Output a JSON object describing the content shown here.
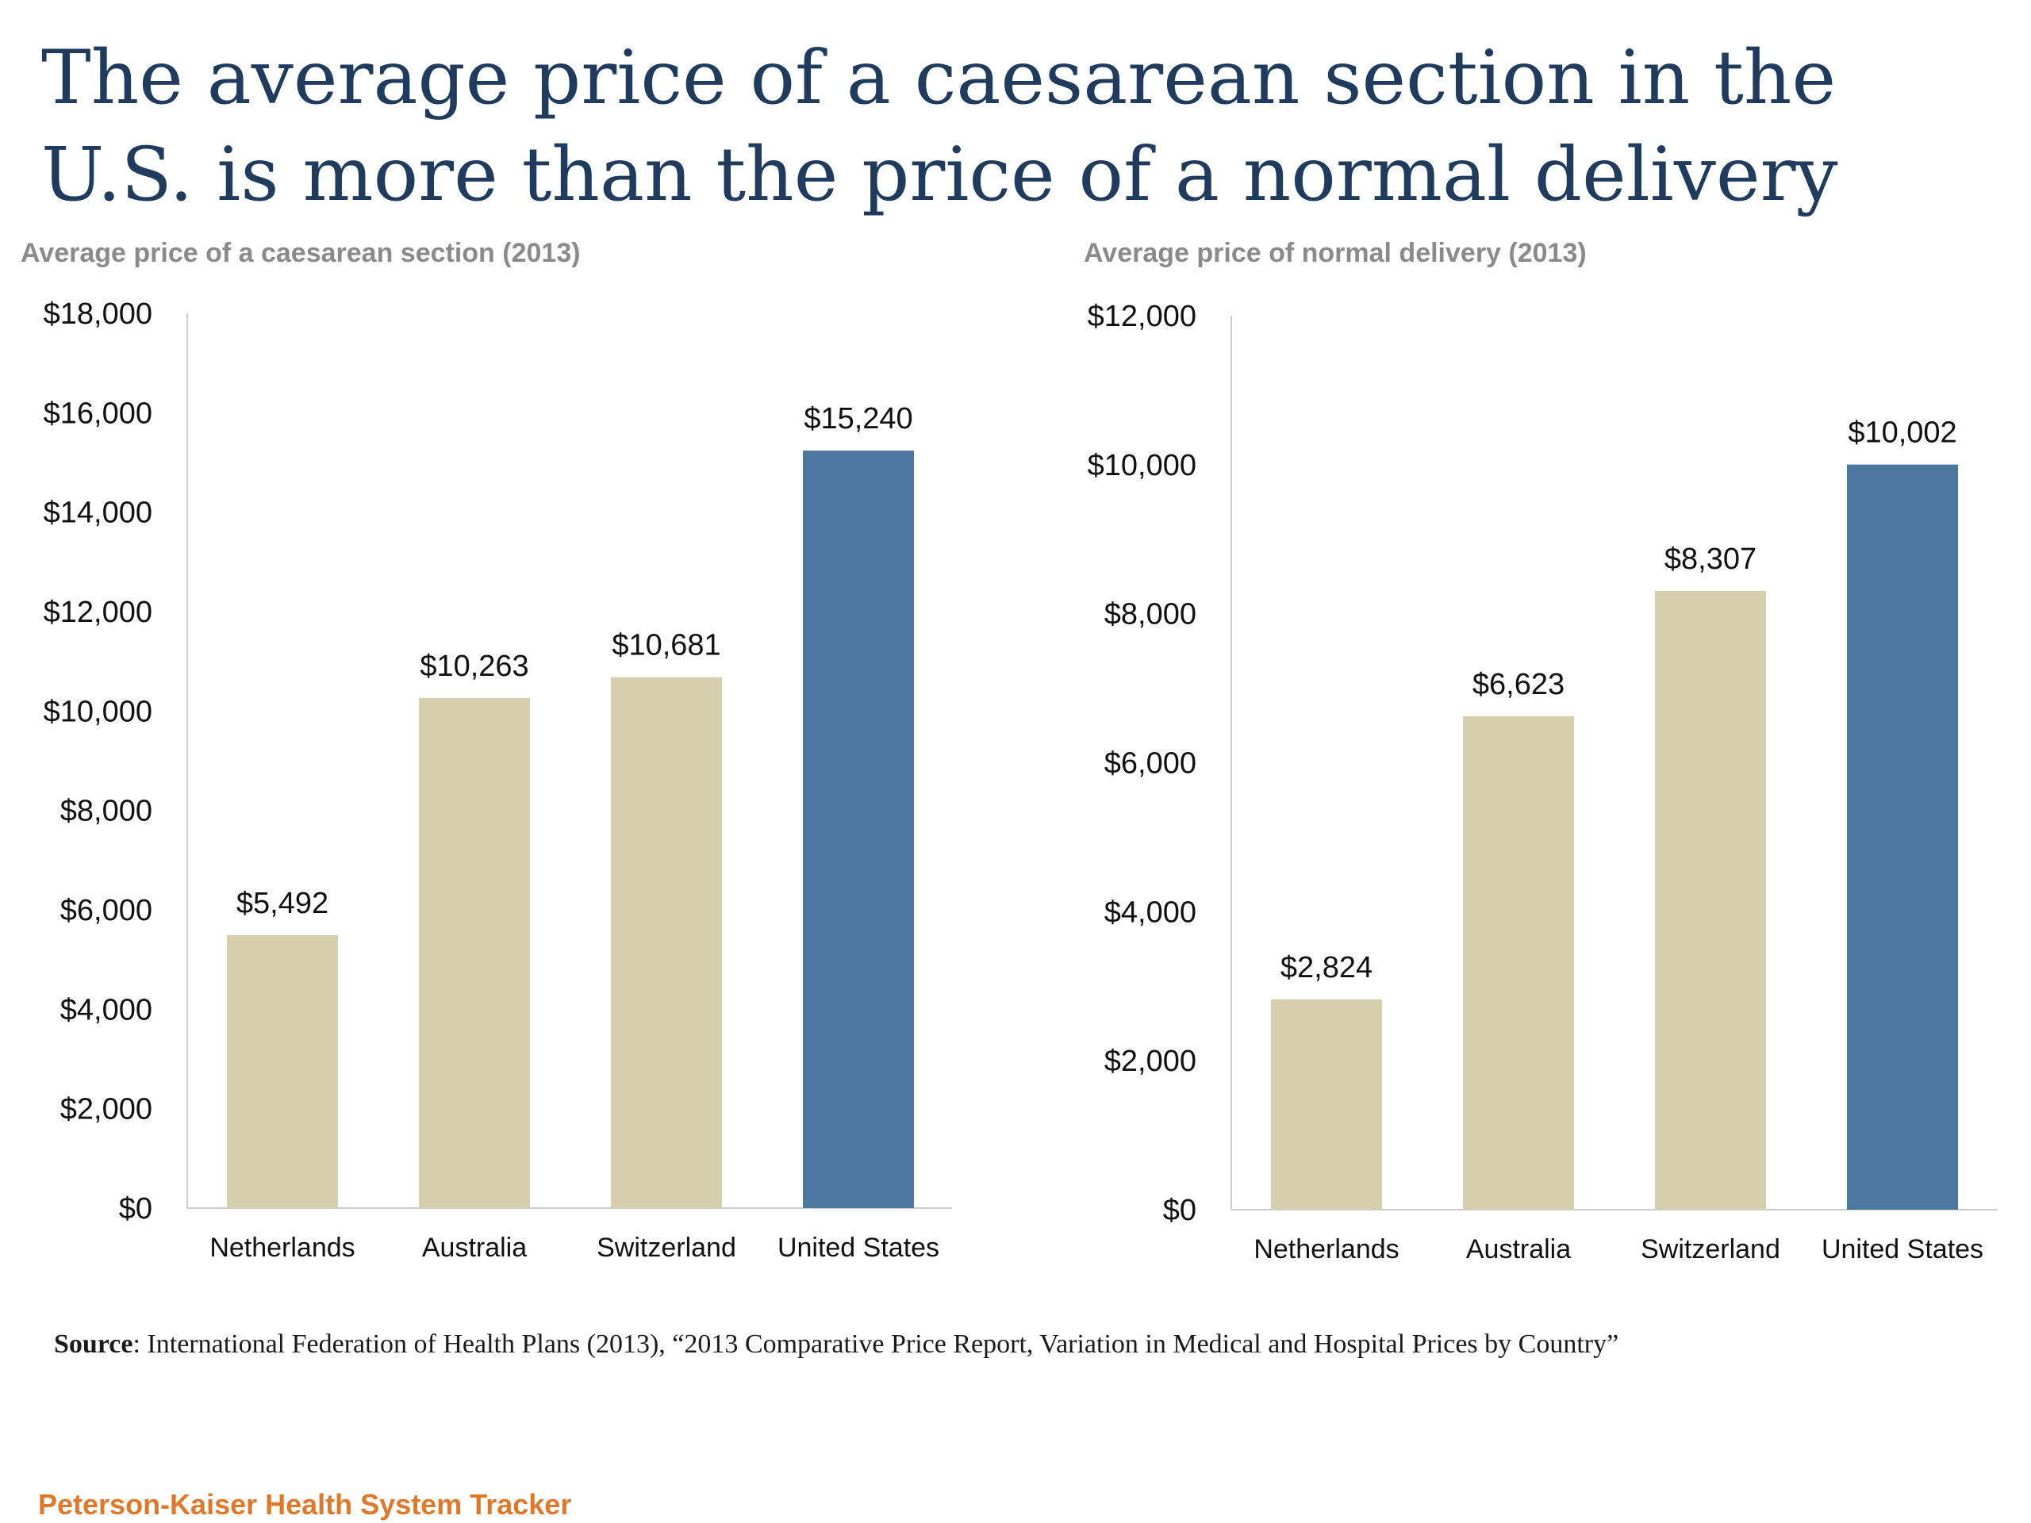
{
  "title": "The average price of a caesarean section in the U.S. is more than the price of a normal delivery",
  "source": {
    "label": "Source",
    "text": ": International Federation of Health Plans (2013), “2013 Comparative Price Report, Variation in Medical and Hospital Prices by Country”"
  },
  "brand": "Peterson-Kaiser Health System Tracker",
  "colors": {
    "highlight": "#4c779e",
    "base": "#d6cfae",
    "axis": "#cccccc",
    "text": "#111111",
    "subtitle": "#8a8a8a"
  },
  "chart_data": [
    {
      "type": "bar",
      "subtitle": "Average price of a caesarean section (2013)",
      "categories": [
        "Netherlands",
        "Australia",
        "Switzerland",
        "United States"
      ],
      "values": [
        5492,
        10263,
        10681,
        15240
      ],
      "value_labels": [
        "$5,492",
        "$10,263",
        "$10,681",
        "$15,240"
      ],
      "ylim": [
        0,
        18000
      ],
      "yticks": [
        0,
        2000,
        4000,
        6000,
        8000,
        10000,
        12000,
        14000,
        16000,
        18000
      ],
      "ytick_labels": [
        "$0",
        "$2,000",
        "$4,000",
        "$6,000",
        "$8,000",
        "$10,000",
        "$12,000",
        "$14,000",
        "$16,000",
        "$18,000"
      ],
      "highlight_index": 3,
      "grid": false
    },
    {
      "type": "bar",
      "subtitle": "Average price of normal delivery (2013)",
      "categories": [
        "Netherlands",
        "Australia",
        "Switzerland",
        "United States"
      ],
      "values": [
        2824,
        6623,
        8307,
        10002
      ],
      "value_labels": [
        "$2,824",
        "$6,623",
        "$8,307",
        "$10,002"
      ],
      "ylim": [
        0,
        12000
      ],
      "yticks": [
        0,
        2000,
        4000,
        6000,
        8000,
        10000,
        12000
      ],
      "ytick_labels": [
        "$0",
        "$2,000",
        "$4,000",
        "$6,000",
        "$8,000",
        "$10,000",
        "$12,000"
      ],
      "highlight_index": 3,
      "grid": false
    }
  ]
}
